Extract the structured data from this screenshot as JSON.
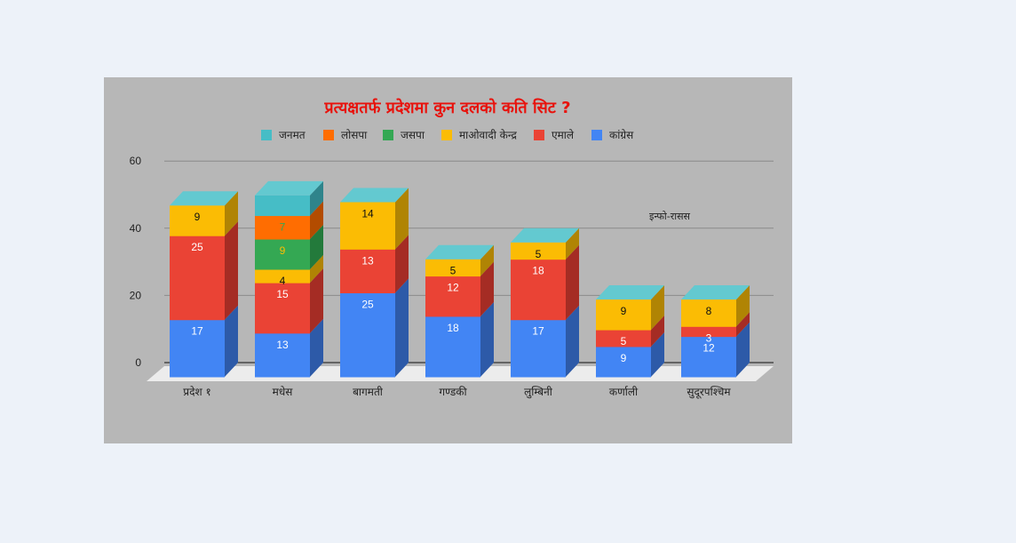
{
  "chart_data": {
    "type": "bar",
    "stacked": true,
    "three_d": true,
    "title": "प्रत्यक्षतर्फ प्रदेशमा कुन दलको कति सिट ?",
    "xlabel": "",
    "ylabel": "",
    "ylim": [
      0,
      60
    ],
    "yticks": [
      0,
      20,
      40,
      60
    ],
    "grid": true,
    "legend_position": "top",
    "annotation": "इन्फो-रासस",
    "categories": [
      "प्रदेश १",
      "मधेस",
      "बागमती",
      "गण्डकी",
      "लुम्बिनी",
      "कर्णाली",
      "सुदूरपश्चिम"
    ],
    "series": [
      {
        "name": "कांग्रेस",
        "color": "#4285f4",
        "side": "#2d5aa8",
        "label_color": "#ffffff",
        "values": [
          17,
          13,
          25,
          18,
          17,
          9,
          12
        ]
      },
      {
        "name": "एमाले",
        "color": "#ea4335",
        "side": "#a52c24",
        "label_color": "#ffffff",
        "values": [
          25,
          15,
          13,
          12,
          18,
          5,
          3
        ]
      },
      {
        "name": "माओवादी केन्द्र",
        "color": "#fbbc04",
        "side": "#b08404",
        "label_color": "#111111",
        "values": [
          9,
          4,
          14,
          5,
          5,
          9,
          8
        ]
      },
      {
        "name": "जसपा",
        "color": "#34a853",
        "side": "#237a3b",
        "label_color": "#fbbc04",
        "values": [
          0,
          9,
          0,
          0,
          0,
          0,
          0
        ]
      },
      {
        "name": "लोसपा",
        "color": "#ff6d01",
        "side": "#b34c00",
        "label_color": "#34a853",
        "values": [
          0,
          7,
          0,
          0,
          0,
          0,
          0
        ]
      },
      {
        "name": "जनमत",
        "color": "#46bdc6",
        "side": "#2f848b",
        "label_color": "#ff6d01",
        "values": [
          0,
          6,
          0,
          0,
          0,
          0,
          0
        ]
      }
    ],
    "legend_order": [
      "जनमत",
      "लोसपा",
      "जसपा",
      "माओवादी केन्द्र",
      "एमाले",
      "कांग्रेस"
    ]
  },
  "panel": {
    "background": "#b7b7b7",
    "page_background": "#edf2f9",
    "top_face_color": "#63c9d0",
    "floor_color": "#ececec"
  }
}
